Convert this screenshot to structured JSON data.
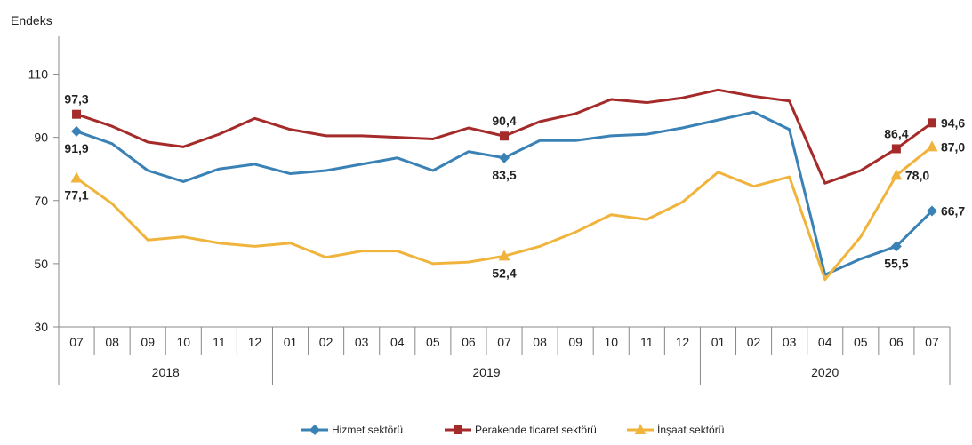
{
  "chart_data": {
    "type": "line",
    "ylabel": "Endeks",
    "ylim": [
      30,
      120
    ],
    "yticks": [
      30,
      50,
      70,
      90,
      110
    ],
    "categories": [
      "07",
      "08",
      "09",
      "10",
      "11",
      "12",
      "01",
      "02",
      "03",
      "04",
      "05",
      "06",
      "07",
      "08",
      "09",
      "10",
      "11",
      "12",
      "01",
      "02",
      "03",
      "04",
      "05",
      "06",
      "07"
    ],
    "year_groups": [
      {
        "label": "2018",
        "start": 0,
        "end": 5
      },
      {
        "label": "2019",
        "start": 6,
        "end": 17
      },
      {
        "label": "2020",
        "start": 18,
        "end": 24
      }
    ],
    "grid": false,
    "legend_position": "bottom",
    "series": [
      {
        "name": "Hizmet sektörü",
        "color": "#3a82b5",
        "marker": "diamond",
        "values": [
          91.9,
          88.0,
          79.5,
          76.0,
          80.0,
          81.5,
          78.5,
          79.5,
          81.5,
          83.5,
          79.5,
          85.5,
          83.5,
          89.0,
          89.0,
          90.5,
          91.0,
          93.0,
          95.5,
          98.0,
          92.5,
          46.5,
          51.5,
          55.5,
          66.7
        ],
        "labels": [
          {
            "index": 0,
            "text": "91,9",
            "pos": "below"
          },
          {
            "index": 12,
            "text": "83,5",
            "pos": "below"
          },
          {
            "index": 23,
            "text": "55,5",
            "pos": "below"
          },
          {
            "index": 24,
            "text": "66,7",
            "pos": "right"
          }
        ]
      },
      {
        "name": "Perakende ticaret sektörü",
        "color": "#a52a2a",
        "marker": "square",
        "values": [
          97.3,
          93.5,
          88.5,
          87.0,
          91.0,
          96.0,
          92.5,
          90.5,
          90.5,
          90.0,
          89.5,
          93.0,
          90.4,
          95.0,
          97.5,
          102.0,
          101.0,
          102.5,
          105.0,
          103.0,
          101.5,
          75.5,
          79.5,
          86.4,
          94.6
        ],
        "labels": [
          {
            "index": 0,
            "text": "97,3",
            "pos": "above"
          },
          {
            "index": 12,
            "text": "90,4",
            "pos": "above"
          },
          {
            "index": 23,
            "text": "86,4",
            "pos": "above"
          },
          {
            "index": 24,
            "text": "94,6",
            "pos": "right"
          }
        ]
      },
      {
        "name": "İnşaat sektörü",
        "color": "#f0b43c",
        "marker": "triangle",
        "values": [
          77.1,
          69.0,
          57.5,
          58.5,
          56.5,
          55.5,
          56.5,
          52.0,
          54.0,
          54.0,
          50.0,
          50.5,
          52.4,
          55.5,
          60.0,
          65.5,
          64.0,
          69.5,
          79.0,
          74.5,
          77.5,
          45.0,
          58.5,
          78.0,
          87.0
        ],
        "labels": [
          {
            "index": 0,
            "text": "77,1",
            "pos": "below"
          },
          {
            "index": 12,
            "text": "52,4",
            "pos": "below"
          },
          {
            "index": 23,
            "text": "78,0",
            "pos": "right"
          },
          {
            "index": 24,
            "text": "87,0",
            "pos": "right"
          }
        ]
      }
    ]
  }
}
